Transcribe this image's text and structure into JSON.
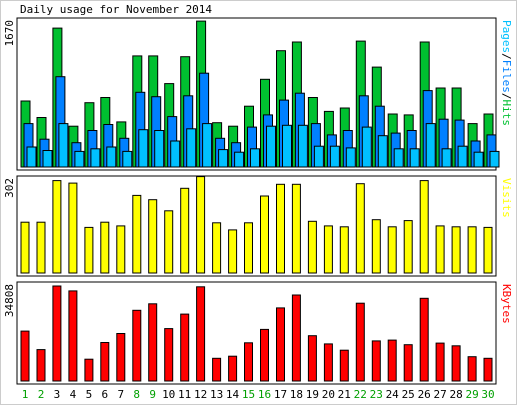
{
  "title": "Daily usage for November 2014",
  "colors": {
    "hits": "#00c030",
    "files": "#0080ff",
    "pages": "#00c0ff",
    "visits": "#ffff00",
    "kbytes": "#ff0000",
    "weekend_label": "#00a000",
    "weekday_label": "#000000"
  },
  "chart_data": {
    "type": "bar",
    "categories": [
      "1",
      "2",
      "3",
      "4",
      "5",
      "6",
      "7",
      "8",
      "9",
      "10",
      "11",
      "12",
      "13",
      "14",
      "15",
      "16",
      "17",
      "18",
      "19",
      "20",
      "21",
      "22",
      "23",
      "24",
      "25",
      "26",
      "27",
      "28",
      "29",
      "30"
    ],
    "weekend_days": [
      "1",
      "2",
      "8",
      "9",
      "15",
      "16",
      "22",
      "23",
      "29",
      "30"
    ],
    "panels": [
      {
        "id": "usage",
        "max_label": "1670",
        "ymax": 1670,
        "legend": [
          {
            "text": "Pages",
            "color": "#00c0ff"
          },
          {
            "text": "/",
            "color": "#000000"
          },
          {
            "text": "Files",
            "color": "#0080ff"
          },
          {
            "text": "/",
            "color": "#000000"
          },
          {
            "text": "Hits",
            "color": "#00c030"
          }
        ],
        "series": [
          {
            "name": "Hits",
            "color": "#00c030",
            "values": [
              760,
              570,
              1600,
              470,
              740,
              800,
              520,
              1280,
              1280,
              960,
              1270,
              1680,
              510,
              470,
              700,
              1010,
              1340,
              1440,
              800,
              640,
              680,
              1450,
              1150,
              610,
              600,
              1440,
              910,
              910,
              500,
              610
            ]
          },
          {
            "name": "Files",
            "color": "#0080ff",
            "values": [
              500,
              320,
              1040,
              280,
              420,
              490,
              330,
              860,
              810,
              580,
              820,
              1080,
              330,
              280,
              460,
              600,
              770,
              850,
              500,
              370,
              420,
              820,
              700,
              390,
              420,
              880,
              550,
              540,
              300,
              370
            ]
          },
          {
            "name": "Pages",
            "color": "#00c0ff",
            "values": [
              230,
              190,
              500,
              180,
              210,
              230,
              180,
              430,
              420,
              300,
              440,
              500,
              200,
              170,
              210,
              470,
              480,
              480,
              240,
              240,
              220,
              460,
              360,
              210,
              210,
              500,
              210,
              240,
              170,
              180
            ]
          }
        ]
      },
      {
        "id": "visits",
        "max_label": "302",
        "ymax": 302,
        "legend": [
          {
            "text": "Visits",
            "color": "#ffff00"
          }
        ],
        "series": [
          {
            "name": "Visits",
            "color": "#ffff00",
            "values": [
              165,
              165,
              300,
              292,
              148,
              165,
              153,
              252,
              238,
              202,
              275,
              313,
              163,
              140,
              163,
              250,
              288,
              288,
              168,
              153,
              150,
              290,
              173,
              150,
              170,
              300,
              153,
              150,
              150,
              148
            ]
          }
        ]
      },
      {
        "id": "kbytes",
        "max_label": "34808",
        "ymax": 34808,
        "legend": [
          {
            "text": "KBytes",
            "color": "#ff0000"
          }
        ],
        "series": [
          {
            "name": "KBytes",
            "color": "#ff0000",
            "values": [
              18300,
              11500,
              34800,
              33000,
              8000,
              14100,
              17400,
              25900,
              28300,
              19200,
              24500,
              34500,
              8300,
              9100,
              14000,
              18900,
              26800,
              31500,
              16600,
              13600,
              11300,
              28500,
              14700,
              15000,
              13300,
              30300,
              13900,
              12900,
              8900,
              8300
            ]
          }
        ]
      }
    ]
  }
}
